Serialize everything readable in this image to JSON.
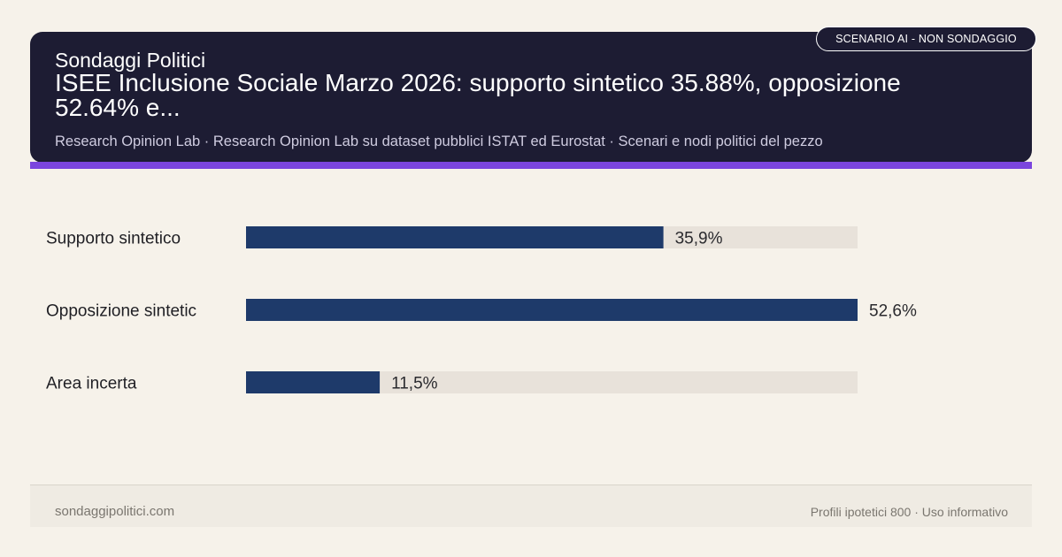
{
  "header": {
    "site_name": "Sondaggi Politici",
    "headline": "ISEE Inclusione Sociale Marzo 2026: supporto sintetico 35.88%, opposizione 52.64% e...",
    "subline": "Research Opinion Lab · Research Opinion Lab su dataset pubblici ISTAT ed Eurostat · Scenari e nodi politici del pezzo",
    "badge": "SCENARIO AI - NON SONDAGGIO"
  },
  "colors": {
    "header_bg": "#1d1c33",
    "accent": "#7b45de",
    "bar_fill": "#1e3a6a",
    "bar_track": "#e8e2da",
    "page_bg": "#f6f2ea"
  },
  "chart_data": {
    "type": "bar",
    "orientation": "horizontal",
    "categories": [
      "Supporto sintetico",
      "Opposizione sintetic",
      "Area incerta"
    ],
    "values": [
      35.9,
      52.6,
      11.5
    ],
    "value_labels": [
      "35,9%",
      "52,6%",
      "11,5%"
    ],
    "xlim": [
      0,
      52.6
    ],
    "grid": false,
    "legend": "none"
  },
  "footer": {
    "left": "sondaggipolitici.com",
    "right": "Profili ipotetici 800 · Uso informativo"
  }
}
